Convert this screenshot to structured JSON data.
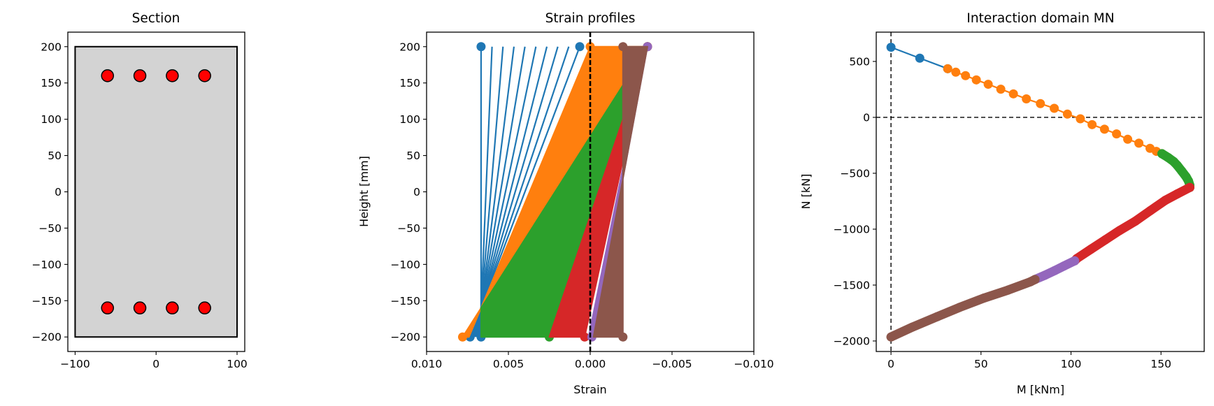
{
  "chart_data": [
    {
      "type": "section",
      "title": "Section",
      "xlim": [
        -109,
        109.5
      ],
      "ylim": [
        -220,
        220
      ],
      "xticks": [
        -100,
        0,
        100
      ],
      "xtick_labels": [
        "−100",
        "0",
        "100"
      ],
      "yticks": [
        200,
        150,
        100,
        50,
        0,
        -50,
        -100,
        -150,
        -200
      ],
      "ytick_labels": [
        "200",
        "150",
        "100",
        "50",
        "0",
        "−50",
        "−100",
        "−150",
        "−200"
      ],
      "concrete": {
        "x": [
          -100,
          100
        ],
        "y": [
          -200,
          200
        ],
        "color": "#d3d3d3"
      },
      "bar_color": "#ff0000",
      "bars": [
        [
          -60,
          160
        ],
        [
          -20,
          160
        ],
        [
          20,
          160
        ],
        [
          60,
          160
        ],
        [
          -60,
          -160
        ],
        [
          -20,
          -160
        ],
        [
          20,
          -160
        ],
        [
          60,
          -160
        ]
      ]
    },
    {
      "type": "line",
      "title": "Strain profiles",
      "xlabel": "Strain",
      "ylabel": "Height [mm]",
      "xlim": [
        0.01,
        -0.01
      ],
      "ylim": [
        -220,
        220
      ],
      "xticks": [
        0.01,
        0.005,
        0,
        -0.005,
        -0.01
      ],
      "xtick_labels": [
        "0.010",
        "0.005",
        "0.000",
        "−0.005",
        "−0.010"
      ],
      "yticks": [
        200,
        150,
        100,
        50,
        0,
        -50,
        -100,
        -150,
        -200
      ],
      "ytick_labels": [
        "200",
        "150",
        "100",
        "50",
        "0",
        "−50",
        "−100",
        "−150",
        "−200"
      ],
      "zero_line": 0,
      "series": [
        {
          "name": "region-1",
          "color": "#1f77b4",
          "lines": [
            [
              [
                0.00667,
                200
              ],
              [
                0.00667,
                -200
              ]
            ],
            [
              [
                0.006,
                200
              ],
              [
                0.00674,
                -200
              ]
            ],
            [
              [
                0.00533,
                200
              ],
              [
                0.00682,
                -200
              ]
            ],
            [
              [
                0.00466,
                200
              ],
              [
                0.00689,
                -200
              ]
            ],
            [
              [
                0.00399,
                200
              ],
              [
                0.00697,
                -200
              ]
            ],
            [
              [
                0.00332,
                200
              ],
              [
                0.00704,
                -200
              ]
            ],
            [
              [
                0.00265,
                200
              ],
              [
                0.00711,
                -200
              ]
            ],
            [
              [
                0.00198,
                200
              ],
              [
                0.00719,
                -200
              ]
            ],
            [
              [
                0.00131,
                200
              ],
              [
                0.00726,
                -200
              ]
            ],
            [
              [
                0.00064,
                200
              ],
              [
                0.00734,
                -200
              ]
            ]
          ],
          "markers": [
            [
              0.00667,
              200
            ],
            [
              0.00064,
              200
            ],
            [
              0.00667,
              -200
            ],
            [
              0.00734,
              -200
            ]
          ]
        },
        {
          "name": "region-2",
          "color": "#ff7f0e",
          "region": [
            [
              0,
              200
            ],
            [
              -0.0035,
              200
            ],
            [
              0.00667,
              -160
            ],
            [
              0.0078,
              -200
            ],
            [
              0.00741,
              -200
            ],
            [
              0.00667,
              -160
            ]
          ],
          "markers": [
            [
              0,
              200
            ],
            [
              -0.0035,
              200
            ],
            [
              0.0078,
              -200
            ]
          ]
        },
        {
          "name": "region-3",
          "color": "#2ca02c",
          "region": [
            [
              -0.0035,
              200
            ],
            [
              0.00667,
              -160
            ],
            [
              0.00667,
              -200
            ],
            [
              0.0025,
              -200
            ]
          ],
          "markers": [
            [
              -0.0035,
              200
            ],
            [
              0.0025,
              -200
            ]
          ]
        },
        {
          "name": "region-4",
          "color": "#d62728",
          "region": [
            [
              -0.0035,
              200
            ],
            [
              0.0025,
              -200
            ],
            [
              0.00034,
              -200
            ]
          ],
          "markers": [
            [
              -0.0035,
              200
            ],
            [
              0.00034,
              -200
            ]
          ]
        },
        {
          "name": "region-5",
          "color": "#9467bd",
          "region": [
            [
              -0.0035,
              200
            ],
            [
              0.0001,
              -200
            ],
            [
              -0.0002,
              -200
            ]
          ],
          "markers": [
            [
              -0.0035,
              200
            ],
            [
              -0.0001,
              -200
            ]
          ]
        },
        {
          "name": "region-6",
          "color": "#8c564b",
          "region": [
            [
              -0.0035,
              200
            ],
            [
              -0.002,
              200
            ],
            [
              -0.002,
              -200
            ],
            [
              -0.0002,
              -200
            ]
          ],
          "markers": [
            [
              -0.002,
              200
            ],
            [
              -0.002,
              -200
            ]
          ]
        }
      ]
    },
    {
      "type": "line",
      "title": "Interaction domain MN",
      "xlabel": "M [kNm]",
      "ylabel": "N [kN]",
      "xlim": [
        -8.2,
        174
      ],
      "ylim": [
        -2094,
        762
      ],
      "xticks": [
        0,
        50,
        100,
        150
      ],
      "xtick_labels": [
        "0",
        "50",
        "100",
        "150"
      ],
      "yticks": [
        500,
        0,
        -500,
        -1000,
        -1500,
        -2000
      ],
      "ytick_labels": [
        "500",
        "0",
        "−500",
        "−1000",
        "−1500",
        "−2000"
      ],
      "zero_lines": {
        "x": 0,
        "y": 0
      },
      "series": [
        {
          "name": "region-1",
          "color": "#1f77b4",
          "dense": false,
          "points": [
            [
              0,
              627
            ],
            [
              16,
              529
            ],
            [
              31.5,
              435
            ]
          ]
        },
        {
          "name": "region-2",
          "color": "#ff7f0e",
          "dense": false,
          "points": [
            [
              31.5,
              435
            ],
            [
              36,
              404
            ],
            [
              41.4,
              373
            ],
            [
              47.4,
              335
            ],
            [
              54,
              296
            ],
            [
              61,
              252
            ],
            [
              68,
              210
            ],
            [
              75.2,
              165
            ],
            [
              83,
              123
            ],
            [
              90.7,
              81
            ],
            [
              98,
              29
            ],
            [
              105.2,
              -13
            ],
            [
              111.7,
              -65
            ],
            [
              118.6,
              -106
            ],
            [
              125.3,
              -148
            ],
            [
              131.5,
              -196
            ],
            [
              137.7,
              -231
            ],
            [
              143.9,
              -277
            ],
            [
              147.4,
              -304
            ],
            [
              150.5,
              -325
            ]
          ]
        },
        {
          "name": "region-3",
          "color": "#2ca02c",
          "dense": true,
          "points": [
            [
              150.5,
              -325
            ],
            [
              154,
              -360
            ],
            [
              157,
              -395
            ],
            [
              159,
              -429
            ],
            [
              161.5,
              -480
            ],
            [
              164,
              -533
            ],
            [
              165.3,
              -570
            ],
            [
              166,
              -606
            ],
            [
              166,
              -627
            ]
          ]
        },
        {
          "name": "region-4",
          "color": "#d62728",
          "dense": true,
          "points": [
            [
              166,
              -627
            ],
            [
              159,
              -685
            ],
            [
              152.4,
              -742
            ],
            [
              144,
              -835
            ],
            [
              135.7,
              -929
            ],
            [
              127,
              -1012
            ],
            [
              119,
              -1096
            ],
            [
              111,
              -1180
            ],
            [
              103.3,
              -1262
            ],
            [
              102,
              -1283
            ]
          ]
        },
        {
          "name": "region-5",
          "color": "#9467bd",
          "dense": true,
          "points": [
            [
              102,
              -1283
            ],
            [
              96,
              -1330
            ],
            [
              91,
              -1370
            ],
            [
              85.5,
              -1412
            ],
            [
              80,
              -1450
            ]
          ]
        },
        {
          "name": "region-6",
          "color": "#8c564b",
          "dense": true,
          "points": [
            [
              80,
              -1450
            ],
            [
              77.4,
              -1471
            ],
            [
              65,
              -1545
            ],
            [
              51.5,
              -1617
            ],
            [
              38,
              -1700
            ],
            [
              25.6,
              -1783
            ],
            [
              12,
              -1875
            ],
            [
              0,
              -1964
            ]
          ]
        }
      ]
    }
  ]
}
